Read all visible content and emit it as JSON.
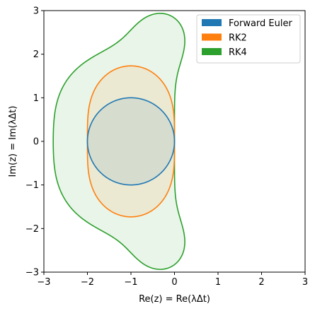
{
  "chart_data": {
    "type": "area",
    "title": "",
    "xlabel": "Re(z) = Re(λΔt)",
    "ylabel": "Im(z) = Im(λΔt)",
    "xlim": [
      -3,
      3
    ],
    "ylim": [
      -3,
      3
    ],
    "xticks": [
      -3,
      -2,
      -1,
      0,
      1,
      2,
      3
    ],
    "yticks": [
      -3,
      -2,
      -1,
      0,
      1,
      2,
      3
    ],
    "xtick_labels": [
      "−3",
      "−2",
      "−1",
      "0",
      "1",
      "2",
      "3"
    ],
    "ytick_labels": [
      "−3",
      "−2",
      "−1",
      "0",
      "1",
      "2",
      "3"
    ],
    "grid": false,
    "legend_position": "top-right",
    "series": [
      {
        "name": "RK4",
        "color": "#2ca02c",
        "order": 4
      },
      {
        "name": "RK2",
        "color": "#ff7f0e",
        "order": 2
      },
      {
        "name": "Forward Euler",
        "color": "#1f77b4",
        "order": 1
      }
    ],
    "legend": [
      {
        "name": "Forward Euler",
        "color": "#1f77b4"
      },
      {
        "name": "RK2",
        "color": "#ff7f0e"
      },
      {
        "name": "RK4",
        "color": "#2ca02c"
      }
    ]
  }
}
